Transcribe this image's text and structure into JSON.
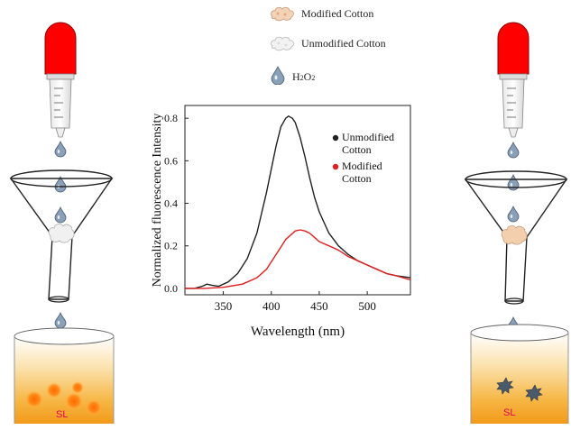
{
  "top_legend": [
    {
      "label": "Modified Cotton",
      "icon": "modified-cotton-icon"
    },
    {
      "label": "Unmodified Cotton",
      "icon": "unmodified-cotton-icon"
    },
    {
      "label_main": "H",
      "label_sub1": "2",
      "label_mid": "O",
      "label_sub2": "2",
      "icon": "water-drop-icon"
    }
  ],
  "beaker_label": "SL",
  "colors": {
    "dropper_bulb": "#ff0000",
    "beaker_orange": "#f5a623",
    "drop": "#8aa0b8",
    "modified_series": "#e02020",
    "unmodified_series": "#222222"
  },
  "chart_data": {
    "type": "line",
    "title": "",
    "xlabel": "Wavelength (nm)",
    "ylabel": "Normalized fluorescence Intensity",
    "xlim": [
      310,
      545
    ],
    "ylim": [
      -0.03,
      0.86
    ],
    "xticks": [
      350,
      400,
      450,
      500
    ],
    "yticks": [
      0.0,
      0.2,
      0.4,
      0.6,
      0.8
    ],
    "ytick_labels": [
      "0.0",
      "0.2",
      "0.4",
      "0.6",
      "0.8"
    ],
    "grid": false,
    "legend_position": "right",
    "series": [
      {
        "name": "Unmodified Cotton",
        "color": "#222222",
        "x": [
          310,
          320,
          328,
          333,
          338,
          345,
          355,
          365,
          375,
          385,
          395,
          400,
          405,
          410,
          415,
          418,
          422,
          425,
          430,
          435,
          440,
          445,
          450,
          460,
          470,
          480,
          490,
          500,
          510,
          520,
          530,
          545
        ],
        "y": [
          0.0,
          0.0,
          0.01,
          0.02,
          0.015,
          0.01,
          0.03,
          0.07,
          0.14,
          0.26,
          0.45,
          0.56,
          0.67,
          0.76,
          0.8,
          0.81,
          0.8,
          0.78,
          0.71,
          0.62,
          0.52,
          0.43,
          0.36,
          0.26,
          0.2,
          0.16,
          0.13,
          0.11,
          0.09,
          0.07,
          0.06,
          0.05
        ]
      },
      {
        "name": "Modified Cotton",
        "color": "#e02020",
        "x": [
          310,
          330,
          350,
          370,
          385,
          395,
          405,
          415,
          425,
          430,
          435,
          440,
          445,
          450,
          460,
          470,
          480,
          490,
          500,
          510,
          520,
          530,
          545
        ],
        "y": [
          0.0,
          0.0,
          0.005,
          0.02,
          0.05,
          0.09,
          0.16,
          0.23,
          0.27,
          0.275,
          0.27,
          0.26,
          0.24,
          0.22,
          0.2,
          0.18,
          0.15,
          0.13,
          0.11,
          0.09,
          0.07,
          0.06,
          0.04
        ]
      }
    ]
  }
}
